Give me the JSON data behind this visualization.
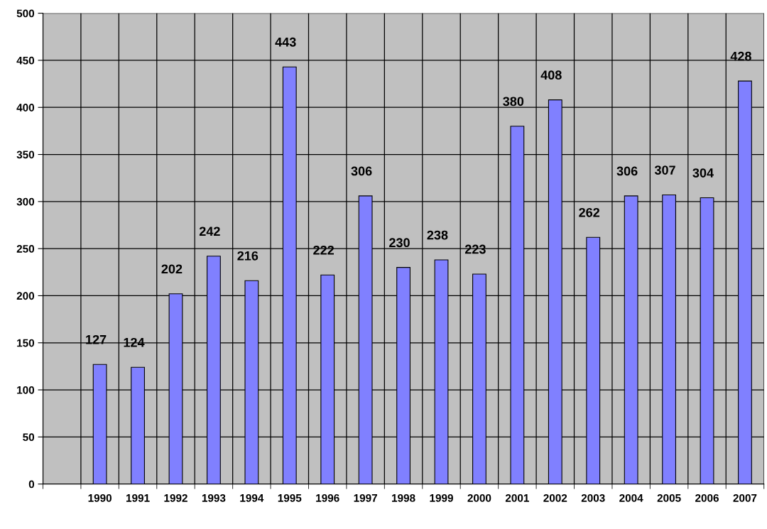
{
  "chart_data": {
    "type": "bar",
    "categories": [
      null,
      "1990",
      "1991",
      "1992",
      "1993",
      "1994",
      "1995",
      "1996",
      "1997",
      "1998",
      "1999",
      "2000",
      "2001",
      "2002",
      "2003",
      "2004",
      "2005",
      "2006",
      "2007"
    ],
    "values": [
      null,
      127,
      124,
      202,
      242,
      216,
      443,
      222,
      306,
      230,
      238,
      223,
      380,
      408,
      262,
      306,
      307,
      304,
      428
    ],
    "color": "#8080ff",
    "ylim": [
      0,
      500
    ],
    "yticks": [
      0,
      50,
      100,
      150,
      200,
      250,
      300,
      350,
      400,
      450,
      500
    ],
    "grid": true,
    "data_labels": true
  }
}
